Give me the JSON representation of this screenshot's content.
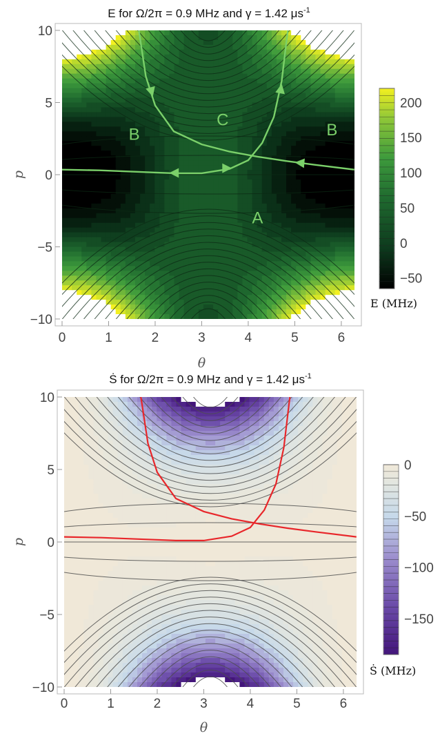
{
  "chart_data": [
    {
      "type": "heatmap",
      "subtype": "contour",
      "title": "E for Ω/2π = 0.9 MHz and γ = 1.42 μs",
      "title_superscript": "-1",
      "xlabel": "θ",
      "ylabel": "p",
      "xlim": [
        0,
        6.283
      ],
      "ylim": [
        -10,
        10
      ],
      "xticks": [
        "0",
        "1",
        "2",
        "3",
        "4",
        "5",
        "6"
      ],
      "yticks": [
        "10",
        "5",
        "0",
        "−5",
        "−10"
      ],
      "colorbar": {
        "label": "E (MHz)",
        "ticks": [
          "200",
          "150",
          "100",
          "50",
          "0",
          "−50"
        ],
        "range": [
          -65,
          220
        ],
        "colors": [
          "#000000",
          "#0d3a1d",
          "#1f6a2f",
          "#3d9a3c",
          "#8fc738",
          "#f3f020"
        ]
      },
      "annotations": [
        "A",
        "B",
        "B",
        "C"
      ],
      "trajectories_color": "#7bd06a",
      "trajectories": [
        {
          "name": "",
          "x": [
            0.0,
            0.8,
            1.6,
            2.4,
            3.0,
            3.6,
            4.0,
            4.3,
            4.55,
            4.72,
            4.85
          ],
          "y": [
            0.35,
            0.3,
            0.2,
            0.1,
            0.1,
            0.4,
            1.0,
            2.2,
            4.0,
            6.5,
            10.0
          ]
        },
        {
          "name": "",
          "x": [
            1.65,
            1.8,
            2.0,
            2.4,
            3.0,
            3.6,
            4.2,
            4.8,
            5.4,
            6.28
          ],
          "y": [
            10.0,
            6.8,
            4.8,
            3.0,
            2.1,
            1.6,
            1.25,
            0.95,
            0.7,
            0.35
          ]
        }
      ]
    },
    {
      "type": "heatmap",
      "subtype": "contour",
      "title": "Ṡ for Ω/2π = 0.9 MHz and γ = 1.42 μs",
      "title_superscript": "-1",
      "xlabel": "θ",
      "ylabel": "p",
      "xlim": [
        0,
        6.283
      ],
      "ylim": [
        -10,
        10
      ],
      "xticks": [
        "0",
        "1",
        "2",
        "3",
        "4",
        "5",
        "6"
      ],
      "yticks": [
        "10",
        "5",
        "0",
        "−5",
        "−10"
      ],
      "colorbar": {
        "label": "Ṡ (MHz)",
        "ticks": [
          "0",
          "−50",
          "−100",
          "−150"
        ],
        "range": [
          -185,
          0
        ],
        "colors": [
          "#43157a",
          "#6a4aa8",
          "#9a8bcc",
          "#c5d8ea",
          "#e2e6e0",
          "#f0e8d8"
        ]
      },
      "trajectories_color": "#e8262a",
      "trajectories": [
        {
          "name": "",
          "x": [
            0.0,
            0.8,
            1.6,
            2.4,
            3.0,
            3.6,
            4.0,
            4.3,
            4.55,
            4.72,
            4.85
          ],
          "y": [
            0.35,
            0.3,
            0.2,
            0.1,
            0.1,
            0.4,
            1.0,
            2.2,
            4.0,
            6.5,
            10.0
          ]
        },
        {
          "name": "",
          "x": [
            1.65,
            1.8,
            2.0,
            2.4,
            3.0,
            3.6,
            4.2,
            4.8,
            5.4,
            6.28
          ],
          "y": [
            10.0,
            6.8,
            4.8,
            3.0,
            2.1,
            1.6,
            1.25,
            0.95,
            0.7,
            0.35
          ]
        }
      ]
    }
  ]
}
